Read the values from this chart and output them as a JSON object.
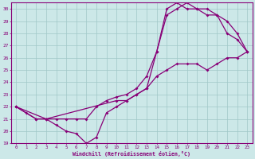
{
  "xlabel": "Windchill (Refroidissement éolien,°C)",
  "bg_color": "#cce8e8",
  "grid_color": "#a0c8c8",
  "line_color": "#880077",
  "xlim": [
    -0.5,
    23.5
  ],
  "ylim": [
    19,
    30.5
  ],
  "xticks": [
    0,
    1,
    2,
    3,
    4,
    5,
    6,
    7,
    8,
    9,
    10,
    11,
    12,
    13,
    14,
    15,
    16,
    17,
    18,
    19,
    20,
    21,
    22,
    23
  ],
  "yticks": [
    19,
    20,
    21,
    22,
    23,
    24,
    25,
    26,
    27,
    28,
    29,
    30
  ],
  "line1_x": [
    0,
    1,
    2,
    3,
    4,
    5,
    6,
    7,
    8,
    9,
    10,
    11,
    12,
    13,
    14,
    15,
    16,
    17,
    18,
    19,
    20,
    21,
    22,
    23
  ],
  "line1_y": [
    22,
    21.5,
    21,
    21,
    20.5,
    20,
    19.8,
    19,
    19.5,
    21.5,
    22,
    22.5,
    23,
    23.5,
    24.5,
    25.0,
    25.5,
    25.5,
    25.5,
    25.0,
    25.5,
    26.0,
    26.0,
    26.5
  ],
  "line2_x": [
    0,
    2,
    3,
    4,
    5,
    6,
    7,
    8,
    9,
    10,
    11,
    12,
    13,
    14,
    15,
    16,
    17,
    18,
    19,
    20,
    21,
    22,
    23
  ],
  "line2_y": [
    22,
    21.0,
    21.0,
    21.0,
    21.0,
    21.0,
    21.0,
    22.0,
    22.5,
    22.8,
    23.0,
    23.5,
    24.5,
    26.5,
    29.5,
    30.0,
    30.5,
    30.0,
    29.5,
    29.5,
    28.0,
    27.5,
    26.5
  ],
  "line3_x": [
    0,
    3,
    10,
    11,
    12,
    13,
    14,
    15,
    16,
    17,
    18,
    19,
    20,
    21,
    22,
    23
  ],
  "line3_y": [
    22,
    21.0,
    22.5,
    22.5,
    23.0,
    23.5,
    26.5,
    30.0,
    30.5,
    30.0,
    30.0,
    30.0,
    29.5,
    29.0,
    28.0,
    26.5
  ]
}
